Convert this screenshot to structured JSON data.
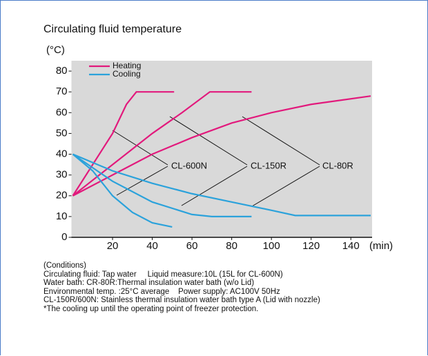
{
  "chart_data": {
    "type": "line",
    "title": "Circulating fluid temperature",
    "y_label": "(°C)",
    "x_label": "(min)",
    "xlim": [
      0,
      150
    ],
    "xticks": [
      20,
      40,
      60,
      80,
      100,
      120,
      140
    ],
    "ylim": [
      0,
      85
    ],
    "yticks": [
      0,
      10,
      20,
      30,
      40,
      50,
      60,
      70,
      80
    ],
    "legend": "upper left",
    "series": [
      {
        "name": "Heating",
        "color": "#e2197c",
        "x": [
          0,
          10,
          20,
          27,
          32,
          51
        ],
        "values": [
          20,
          35,
          50,
          64,
          70,
          70
        ]
      },
      {
        "name": "Heating",
        "color": "#e2197c",
        "x": [
          0,
          20,
          40,
          55,
          69,
          90
        ],
        "values": [
          20,
          35,
          50,
          60,
          70,
          70
        ]
      },
      {
        "name": "Heating",
        "color": "#e2197c",
        "x": [
          0,
          20,
          40,
          60,
          80,
          100,
          120,
          150
        ],
        "values": [
          20,
          30,
          40,
          48,
          55,
          60,
          64,
          68
        ]
      },
      {
        "name": "Cooling",
        "color": "#2ba2db",
        "x": [
          0,
          10,
          20,
          30,
          40,
          50
        ],
        "values": [
          40,
          32,
          20,
          12,
          7,
          5
        ]
      },
      {
        "name": "Cooling",
        "color": "#2ba2db",
        "x": [
          0,
          20,
          40,
          60,
          70,
          90
        ],
        "values": [
          40,
          27,
          17,
          11,
          10,
          10
        ]
      },
      {
        "name": "Cooling",
        "color": "#2ba2db",
        "x": [
          0,
          20,
          40,
          60,
          80,
          100,
          112,
          150
        ],
        "values": [
          40,
          32,
          26,
          21,
          17,
          13,
          10.5,
          10.5
        ]
      }
    ],
    "legend_entries": [
      "Heating",
      "Cooling"
    ],
    "annotations": [
      "CL-600N",
      "CL-150R",
      "CL-80R"
    ],
    "notes": [
      "(Conditions)",
      "Circulating fluid: Tap water     Liquid measure:10L (15L for CL-600N)",
      "Water bath: CR-80R:Thermal insulation water bath (w/o Lid)",
      "Environmental temp. :25°C average    Power supply: AC100V 50Hz",
      "CL-150R/600N: Stainless thermal insulation water bath type A (Lid with nozzle)",
      "*The cooling up until the operating point of freezer protection."
    ]
  }
}
